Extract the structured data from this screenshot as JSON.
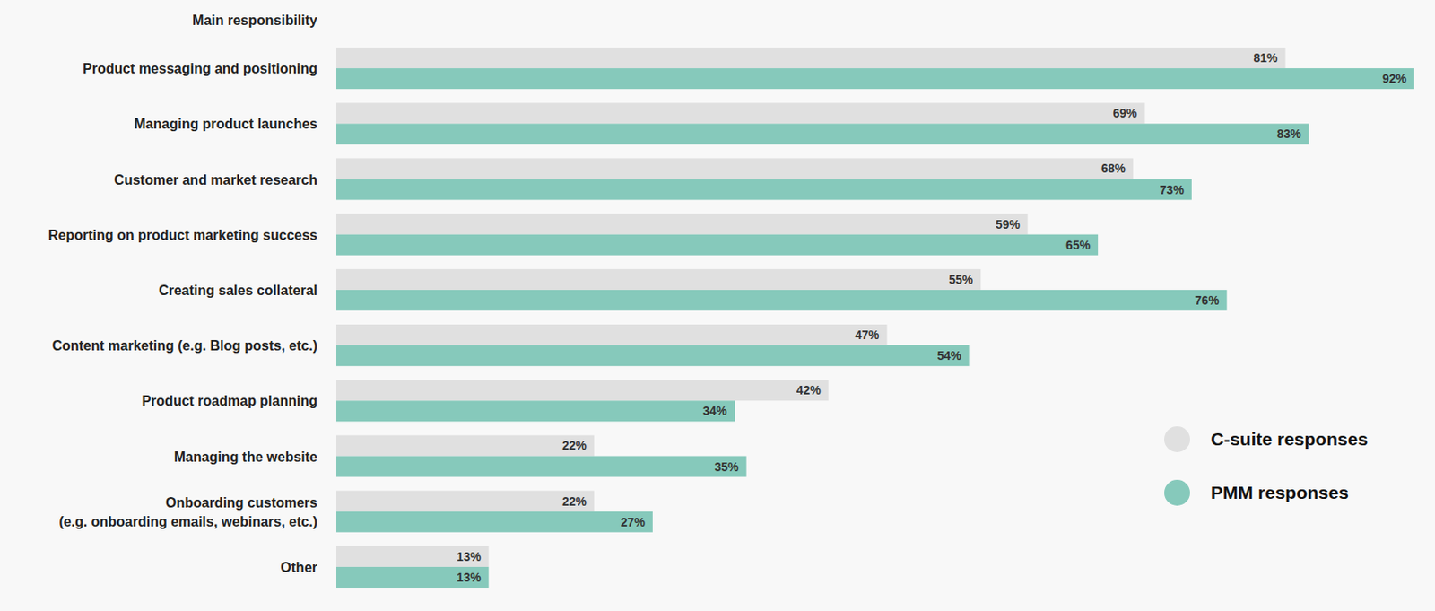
{
  "chart_data": {
    "type": "bar",
    "orientation": "horizontal",
    "ylabel": "Main responsibility",
    "categories": [
      "Product messaging and positioning",
      "Managing product launches",
      "Customer and market research",
      "Reporting on product marketing success",
      "Creating sales collateral",
      "Content marketing (e.g. Blog posts, etc.)",
      "Product roadmap planning",
      "Managing the website",
      "Onboarding customers\n(e.g. onboarding emails, webinars, etc.)",
      "Other"
    ],
    "series": [
      {
        "name": "C-suite responses",
        "color": "#e0e0e0",
        "values": [
          81,
          69,
          68,
          59,
          55,
          47,
          42,
          22,
          22,
          13
        ],
        "value_labels": [
          "81%",
          "69%",
          "68%",
          "59%",
          "55%",
          "47%",
          "42%",
          "22%",
          "22%",
          "13%"
        ]
      },
      {
        "name": "PMM responses",
        "color": "#86c9bb",
        "values": [
          92,
          83,
          73,
          65,
          76,
          54,
          34,
          35,
          27,
          13
        ],
        "value_labels": [
          "92%",
          "83%",
          "73%",
          "65%",
          "76%",
          "54%",
          "34%",
          "35%",
          "27%",
          "13%"
        ]
      }
    ],
    "xlim": [
      0,
      92
    ],
    "data_labels": true,
    "tick_labels": "y",
    "legend": "right",
    "grid": false
  }
}
